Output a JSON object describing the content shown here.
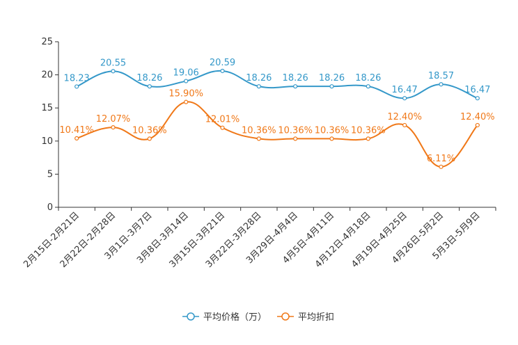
{
  "chart_data": {
    "type": "line",
    "categories": [
      "2月15日-2月21日",
      "2月22日-2月28日",
      "3月1日-3月7日",
      "3月8日-3月14日",
      "3月15日-3月21日",
      "3月22日-3月28日",
      "3月29日-4月4日",
      "4月5日-4月11日",
      "4月12日-4月18日",
      "4月19日-4月25日",
      "4月26日-5月2日",
      "5月3日-5月9日"
    ],
    "ylim": [
      0,
      25
    ],
    "yticks": [
      "0",
      "5",
      "10",
      "15",
      "20",
      "25"
    ],
    "series": [
      {
        "name": "平均价格（万）",
        "color": "#3498c9",
        "values": [
          18.23,
          20.55,
          18.26,
          19.06,
          20.59,
          18.26,
          18.26,
          18.26,
          18.26,
          16.47,
          18.57,
          16.47
        ],
        "labels": [
          "18.23",
          "20.55",
          "18.26",
          "19.06",
          "20.59",
          "18.26",
          "18.26",
          "18.26",
          "18.26",
          "16.47",
          "18.57",
          "16.47"
        ]
      },
      {
        "name": "平均折扣",
        "color": "#f07818",
        "values": [
          10.41,
          12.07,
          10.36,
          15.9,
          12.01,
          10.36,
          10.36,
          10.36,
          10.36,
          12.4,
          6.11,
          12.4
        ],
        "labels": [
          "10.41%",
          "12.07%",
          "10.36%",
          "15.90%",
          "12.01%",
          "10.36%",
          "10.36%",
          "10.36%",
          "10.36%",
          "12.40%",
          "6.11%",
          "12.40%"
        ]
      }
    ]
  }
}
